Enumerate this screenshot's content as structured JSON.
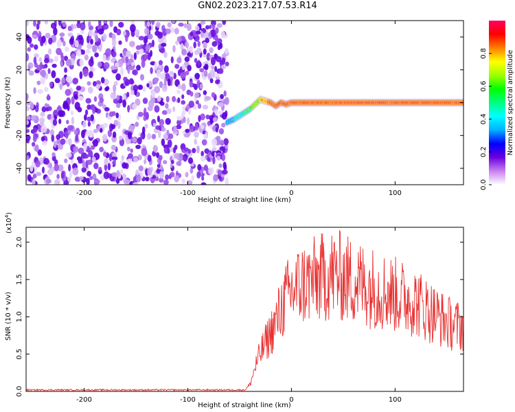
{
  "title": "GN02.2023.217.07.53.R14",
  "chart_data": [
    {
      "type": "heatmap",
      "xlabel": "Height of straight line (km)",
      "ylabel": "Frequency (Hz)",
      "xlim": [
        -256,
        166
      ],
      "ylim": [
        -50,
        50
      ],
      "xticks": [
        -200,
        -100,
        0,
        100
      ],
      "yticks": [
        -40,
        -20,
        0,
        20,
        40
      ],
      "colorbar": {
        "label": "Normalized spectral amplitude",
        "range": [
          0,
          1
        ],
        "ticks": [
          "0.0",
          "0.2",
          "0.4",
          "0.6",
          "0.8"
        ],
        "colors": [
          "#ffffff",
          "#c880f0",
          "#6a00e0",
          "#0000ff",
          "#00b0ff",
          "#00ffff",
          "#00ff80",
          "#00ff00",
          "#a0ff00",
          "#ffff00",
          "#ff8000",
          "#ff0000",
          "#ff0060"
        ]
      },
      "noise_region": {
        "x": [
          -256,
          -62
        ],
        "y": [
          -50,
          50
        ]
      },
      "signal_track": {
        "x": [
          -62,
          -55,
          -50,
          -45,
          -40,
          -35,
          -30,
          -25,
          -20,
          -15,
          -10,
          -5,
          0,
          10,
          20,
          40,
          60,
          80,
          100,
          120,
          140,
          166
        ],
        "y": [
          -12,
          -10,
          -8,
          -6,
          -4,
          -1,
          2,
          1,
          0,
          -2,
          0,
          -1,
          0,
          0,
          0,
          0,
          0,
          0,
          0,
          0,
          0,
          0
        ]
      }
    },
    {
      "type": "line",
      "xlabel": "Height of straight line (km)",
      "ylabel": "SNR (10 * v/v)",
      "yscale_label": "(x10",
      "yscale_exp": "4",
      "yscale_tail": ")",
      "xlim": [
        -256,
        166
      ],
      "ylim": [
        0,
        2.2
      ],
      "xticks": [
        -200,
        -100,
        0,
        100
      ],
      "yticks": [
        "0.0",
        "0.5",
        "1.0",
        "1.5",
        "2.0"
      ],
      "color": "#e83030",
      "envelope": {
        "x": [
          -256,
          -45,
          -40,
          -35,
          -30,
          -25,
          -20,
          -15,
          -10,
          -5,
          0,
          10,
          20,
          30,
          40,
          50,
          60,
          70,
          80,
          90,
          100,
          110,
          120,
          130,
          140,
          150,
          160,
          166
        ],
        "y": [
          0.02,
          0.02,
          0.1,
          0.35,
          0.55,
          0.7,
          0.85,
          1.0,
          1.2,
          1.35,
          1.45,
          1.55,
          1.6,
          1.65,
          1.7,
          1.65,
          1.6,
          1.55,
          1.5,
          1.45,
          1.4,
          1.35,
          1.3,
          1.2,
          1.1,
          1.0,
          0.95,
          0.95
        ]
      }
    }
  ]
}
